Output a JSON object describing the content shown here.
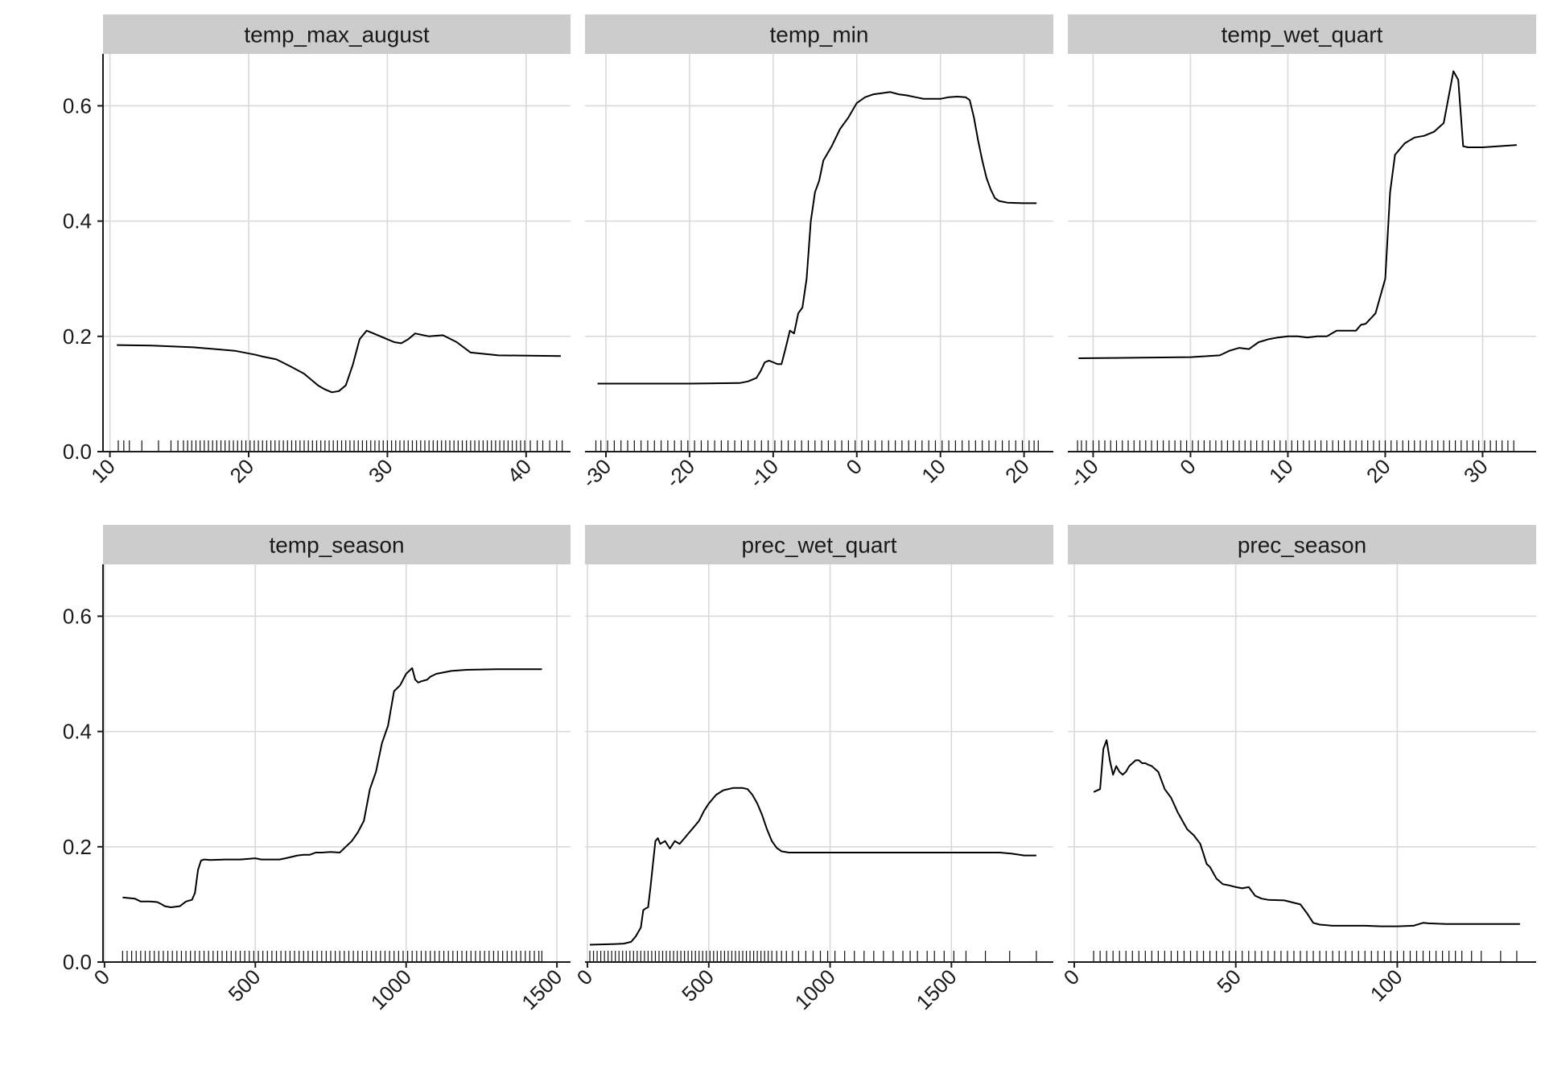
{
  "chart_data": {
    "type": "line",
    "layout": "facet grid, 2 rows x 3 columns, shared y-axis, free x-axes",
    "ylim": [
      0,
      0.69
    ],
    "yticks": [
      0.0,
      0.2,
      0.4,
      0.6
    ],
    "ytick_labels": [
      "0.0",
      "0.2",
      "0.4",
      "0.6"
    ],
    "grid": true,
    "panels": [
      {
        "title": "temp_max_august",
        "xlim": [
          9.5,
          43.2
        ],
        "xticks": [
          10,
          20,
          30,
          40
        ],
        "xtick_labels": [
          "10",
          "20",
          "30",
          "40"
        ],
        "x": [
          10.5,
          13,
          16,
          19,
          20.5,
          21,
          22,
          23,
          24,
          24.5,
          25,
          25.5,
          26,
          26.5,
          27,
          27.5,
          28,
          28.5,
          29,
          29.5,
          30,
          30.5,
          31,
          31.5,
          32,
          33,
          34,
          35,
          36,
          38,
          42.5
        ],
        "y": [
          0.185,
          0.184,
          0.181,
          0.175,
          0.168,
          0.165,
          0.16,
          0.148,
          0.135,
          0.125,
          0.115,
          0.108,
          0.103,
          0.105,
          0.115,
          0.15,
          0.195,
          0.21,
          0.205,
          0.2,
          0.195,
          0.19,
          0.188,
          0.195,
          0.205,
          0.2,
          0.202,
          0.19,
          0.172,
          0.167,
          0.166
        ],
        "rug": [
          10.6,
          11.0,
          11.4,
          12.3,
          13.5,
          14.4,
          14.9,
          15.3,
          15.6,
          15.9,
          16.2,
          16.5,
          16.8,
          17.1,
          17.4,
          17.7,
          18.0,
          18.3,
          18.6,
          18.9,
          19.2,
          19.5,
          19.8,
          20.1,
          20.4,
          20.7,
          21.0,
          21.3,
          21.6,
          21.9,
          22.2,
          22.5,
          22.8,
          23.1,
          23.4,
          23.7,
          24.0,
          24.3,
          24.6,
          24.9,
          25.2,
          25.5,
          25.8,
          26.1,
          26.4,
          26.7,
          27.0,
          27.3,
          27.6,
          27.9,
          28.2,
          28.5,
          28.8,
          29.1,
          29.4,
          29.7,
          30.0,
          30.3,
          30.6,
          30.9,
          31.2,
          31.5,
          31.8,
          32.1,
          32.4,
          32.7,
          33.0,
          33.3,
          33.6,
          33.9,
          34.2,
          34.5,
          34.8,
          35.1,
          35.4,
          35.7,
          36.0,
          36.3,
          36.6,
          36.9,
          37.2,
          37.5,
          37.8,
          38.1,
          38.4,
          38.7,
          39.0,
          39.3,
          39.6,
          39.9,
          40.3,
          40.8,
          41.2,
          41.7,
          42.2,
          42.6
        ]
      },
      {
        "title": "temp_min",
        "xlim": [
          -32.5,
          23.5
        ],
        "xticks": [
          -30,
          -20,
          -10,
          0,
          10,
          20
        ],
        "xtick_labels": [
          "-30",
          "-20",
          "-10",
          "0",
          "10",
          "20"
        ],
        "x": [
          -31,
          -20,
          -14,
          -13,
          -12,
          -11.5,
          -11,
          -10.5,
          -10,
          -9.5,
          -9,
          -8.5,
          -8,
          -7.5,
          -7,
          -6.5,
          -6,
          -5.5,
          -5,
          -4.5,
          -4,
          -3,
          -2,
          -1,
          0,
          1,
          2,
          3,
          4,
          5,
          6,
          7,
          8,
          9,
          10,
          11,
          12,
          13,
          13.5,
          14,
          14.5,
          15,
          15.5,
          16,
          16.5,
          17,
          18,
          20,
          21.5
        ],
        "y": [
          0.118,
          0.118,
          0.119,
          0.122,
          0.128,
          0.14,
          0.155,
          0.158,
          0.155,
          0.152,
          0.152,
          0.18,
          0.21,
          0.205,
          0.24,
          0.25,
          0.3,
          0.4,
          0.45,
          0.47,
          0.505,
          0.53,
          0.56,
          0.58,
          0.605,
          0.615,
          0.62,
          0.622,
          0.624,
          0.62,
          0.618,
          0.615,
          0.612,
          0.612,
          0.612,
          0.615,
          0.616,
          0.615,
          0.61,
          0.58,
          0.54,
          0.505,
          0.475,
          0.455,
          0.44,
          0.435,
          0.432,
          0.431,
          0.431
        ],
        "rug": [
          -31.2,
          -30.6,
          -29.8,
          -29.0,
          -28.2,
          -27.4,
          -26.6,
          -25.8,
          -25.0,
          -24.2,
          -23.4,
          -22.6,
          -21.8,
          -21.0,
          -20.2,
          -19.4,
          -18.6,
          -17.8,
          -17.0,
          -16.2,
          -15.4,
          -14.6,
          -13.8,
          -13.0,
          -12.2,
          -11.4,
          -10.6,
          -9.8,
          -9.0,
          -8.2,
          -7.4,
          -6.6,
          -5.8,
          -5.0,
          -4.2,
          -3.4,
          -2.6,
          -1.8,
          -1.0,
          -0.2,
          0.6,
          1.4,
          2.2,
          3.0,
          3.8,
          4.6,
          5.4,
          6.2,
          7.0,
          7.8,
          8.6,
          9.4,
          10.2,
          11.0,
          11.8,
          12.6,
          13.4,
          14.2,
          15.0,
          15.8,
          16.6,
          17.4,
          18.2,
          19.0,
          19.8,
          20.6,
          21.2,
          21.7
        ]
      },
      {
        "title": "temp_wet_quart",
        "xlim": [
          -12.6,
          35.5
        ],
        "xticks": [
          -10,
          0,
          10,
          20,
          30
        ],
        "xtick_labels": [
          "-10",
          "0",
          "10",
          "20",
          "30"
        ],
        "x": [
          -11.5,
          -5,
          0,
          3,
          4,
          5,
          6,
          7,
          8,
          9,
          10,
          11,
          12,
          13,
          14,
          15,
          16,
          17,
          17.5,
          18,
          19,
          20,
          20.5,
          21,
          22,
          23,
          24,
          25,
          26,
          27,
          27.5,
          28,
          28.5,
          30,
          33.5
        ],
        "y": [
          0.162,
          0.163,
          0.164,
          0.167,
          0.175,
          0.18,
          0.178,
          0.19,
          0.195,
          0.198,
          0.2,
          0.2,
          0.198,
          0.2,
          0.2,
          0.21,
          0.21,
          0.21,
          0.22,
          0.222,
          0.24,
          0.3,
          0.45,
          0.515,
          0.535,
          0.545,
          0.548,
          0.555,
          0.57,
          0.66,
          0.645,
          0.53,
          0.528,
          0.528,
          0.532
        ],
        "rug": [
          -11.6,
          -11.2,
          -10.7,
          -10.0,
          -9.4,
          -8.8,
          -8.2,
          -7.6,
          -7.0,
          -6.4,
          -5.8,
          -5.2,
          -4.6,
          -4.0,
          -3.4,
          -2.8,
          -2.2,
          -1.6,
          -1.0,
          -0.4,
          0.2,
          0.8,
          1.4,
          2.0,
          2.6,
          3.2,
          3.8,
          4.4,
          5.0,
          5.6,
          6.2,
          6.8,
          7.4,
          8.0,
          8.6,
          9.2,
          9.8,
          10.4,
          11.0,
          11.6,
          12.2,
          12.8,
          13.4,
          14.0,
          14.6,
          15.2,
          15.8,
          16.4,
          17.0,
          17.6,
          18.2,
          18.8,
          19.4,
          20.0,
          20.6,
          21.2,
          21.8,
          22.4,
          23.0,
          23.6,
          24.2,
          24.8,
          25.4,
          26.0,
          26.6,
          27.2,
          27.8,
          28.4,
          29.0,
          29.6,
          30.2,
          30.8,
          31.4,
          32.0,
          32.6,
          33.2
        ]
      },
      {
        "title": "temp_season",
        "xlim": [
          -5,
          1545
        ],
        "xticks": [
          0,
          500,
          1000,
          1500
        ],
        "xtick_labels": [
          "0",
          "500",
          "1000",
          "1500"
        ],
        "x": [
          60,
          100,
          120,
          150,
          175,
          190,
          200,
          220,
          250,
          270,
          290,
          300,
          310,
          320,
          330,
          350,
          400,
          450,
          500,
          520,
          540,
          580,
          600,
          640,
          660,
          680,
          700,
          720,
          750,
          780,
          800,
          820,
          840,
          860,
          880,
          900,
          920,
          940,
          960,
          980,
          1000,
          1020,
          1030,
          1040,
          1050,
          1070,
          1080,
          1100,
          1150,
          1200,
          1300,
          1450
        ],
        "y": [
          0.112,
          0.11,
          0.105,
          0.105,
          0.104,
          0.1,
          0.097,
          0.095,
          0.097,
          0.105,
          0.108,
          0.12,
          0.16,
          0.176,
          0.178,
          0.177,
          0.178,
          0.178,
          0.18,
          0.178,
          0.178,
          0.178,
          0.18,
          0.185,
          0.186,
          0.186,
          0.19,
          0.19,
          0.191,
          0.19,
          0.2,
          0.21,
          0.225,
          0.245,
          0.3,
          0.33,
          0.38,
          0.41,
          0.47,
          0.48,
          0.5,
          0.51,
          0.49,
          0.485,
          0.487,
          0.49,
          0.495,
          0.5,
          0.505,
          0.507,
          0.508,
          0.508
        ],
        "rug": [
          60,
          75,
          90,
          105,
          120,
          135,
          150,
          165,
          180,
          195,
          210,
          225,
          240,
          255,
          270,
          285,
          300,
          315,
          330,
          345,
          360,
          375,
          390,
          405,
          420,
          435,
          450,
          465,
          480,
          495,
          510,
          525,
          540,
          555,
          570,
          585,
          600,
          615,
          630,
          645,
          660,
          675,
          690,
          705,
          720,
          735,
          750,
          765,
          780,
          795,
          810,
          825,
          840,
          855,
          870,
          885,
          900,
          915,
          930,
          945,
          960,
          975,
          990,
          1005,
          1020,
          1035,
          1050,
          1065,
          1080,
          1095,
          1110,
          1125,
          1140,
          1155,
          1170,
          1185,
          1200,
          1215,
          1230,
          1245,
          1260,
          1275,
          1290,
          1305,
          1320,
          1335,
          1350,
          1365,
          1380,
          1395,
          1410,
          1425,
          1440,
          1450
        ]
      },
      {
        "title": "prec_wet_quart",
        "xlim": [
          -10,
          1920
        ],
        "xticks": [
          0,
          500,
          1000,
          1500
        ],
        "xtick_labels": [
          "0",
          "500",
          "1000",
          "1500"
        ],
        "x": [
          10,
          100,
          150,
          180,
          200,
          220,
          230,
          240,
          250,
          260,
          270,
          280,
          290,
          300,
          320,
          340,
          360,
          380,
          400,
          420,
          440,
          460,
          480,
          500,
          530,
          560,
          600,
          640,
          660,
          680,
          700,
          720,
          740,
          760,
          780,
          800,
          830,
          900,
          1200,
          1500,
          1700,
          1750,
          1800,
          1850
        ],
        "y": [
          0.03,
          0.031,
          0.032,
          0.035,
          0.045,
          0.06,
          0.09,
          0.093,
          0.095,
          0.13,
          0.17,
          0.21,
          0.215,
          0.205,
          0.21,
          0.197,
          0.21,
          0.205,
          0.215,
          0.225,
          0.235,
          0.245,
          0.262,
          0.275,
          0.29,
          0.298,
          0.302,
          0.302,
          0.3,
          0.29,
          0.275,
          0.255,
          0.23,
          0.21,
          0.198,
          0.192,
          0.19,
          0.19,
          0.19,
          0.19,
          0.19,
          0.188,
          0.185,
          0.185
        ],
        "rug": [
          10,
          25,
          40,
          55,
          70,
          85,
          100,
          115,
          130,
          145,
          160,
          175,
          190,
          205,
          220,
          235,
          250,
          265,
          280,
          295,
          310,
          325,
          340,
          355,
          370,
          385,
          400,
          415,
          430,
          445,
          460,
          475,
          490,
          505,
          520,
          535,
          550,
          565,
          580,
          595,
          610,
          625,
          640,
          655,
          670,
          685,
          700,
          715,
          730,
          745,
          760,
          780,
          800,
          820,
          845,
          870,
          900,
          930,
          960,
          990,
          1020,
          1060,
          1100,
          1140,
          1180,
          1220,
          1260,
          1300,
          1330,
          1360,
          1400,
          1430,
          1470,
          1510,
          1560,
          1640,
          1740,
          1850
        ]
      },
      {
        "title": "prec_season",
        "xlim": [
          -2,
          143
        ],
        "xticks": [
          0,
          50,
          100
        ],
        "xtick_labels": [
          "0",
          "50",
          "100"
        ],
        "x": [
          6,
          8,
          9,
          10,
          11,
          12,
          13,
          14,
          15,
          16,
          17,
          18,
          19,
          20,
          21,
          22,
          23,
          24,
          25,
          26,
          28,
          30,
          32,
          34,
          35,
          37,
          39,
          41,
          42,
          43,
          44,
          45,
          46,
          48,
          50,
          52,
          54,
          56,
          58,
          60,
          65,
          70,
          72,
          74,
          76,
          80,
          85,
          90,
          95,
          100,
          105,
          108,
          110,
          115,
          120,
          130,
          138
        ],
        "y": [
          0.295,
          0.3,
          0.37,
          0.385,
          0.35,
          0.325,
          0.34,
          0.33,
          0.325,
          0.33,
          0.34,
          0.345,
          0.35,
          0.35,
          0.345,
          0.345,
          0.342,
          0.34,
          0.335,
          0.33,
          0.3,
          0.285,
          0.26,
          0.24,
          0.23,
          0.22,
          0.205,
          0.17,
          0.165,
          0.155,
          0.145,
          0.14,
          0.135,
          0.133,
          0.13,
          0.128,
          0.13,
          0.115,
          0.11,
          0.108,
          0.107,
          0.1,
          0.085,
          0.068,
          0.065,
          0.063,
          0.063,
          0.063,
          0.062,
          0.062,
          0.063,
          0.068,
          0.067,
          0.066,
          0.066,
          0.066,
          0.066
        ],
        "rug": [
          6,
          8,
          10,
          12,
          14,
          16,
          18,
          20,
          22,
          24,
          26,
          28,
          30,
          32,
          34,
          36,
          38,
          40,
          42,
          44,
          46,
          48,
          50,
          52,
          54,
          56,
          58,
          60,
          62,
          64,
          66,
          68,
          70,
          72,
          74,
          76,
          78,
          80,
          82,
          84,
          86,
          88,
          90,
          92,
          94,
          96,
          98,
          100,
          102,
          104,
          106,
          108,
          110,
          112,
          114,
          116,
          118,
          120,
          123,
          126,
          132,
          137
        ]
      }
    ]
  }
}
